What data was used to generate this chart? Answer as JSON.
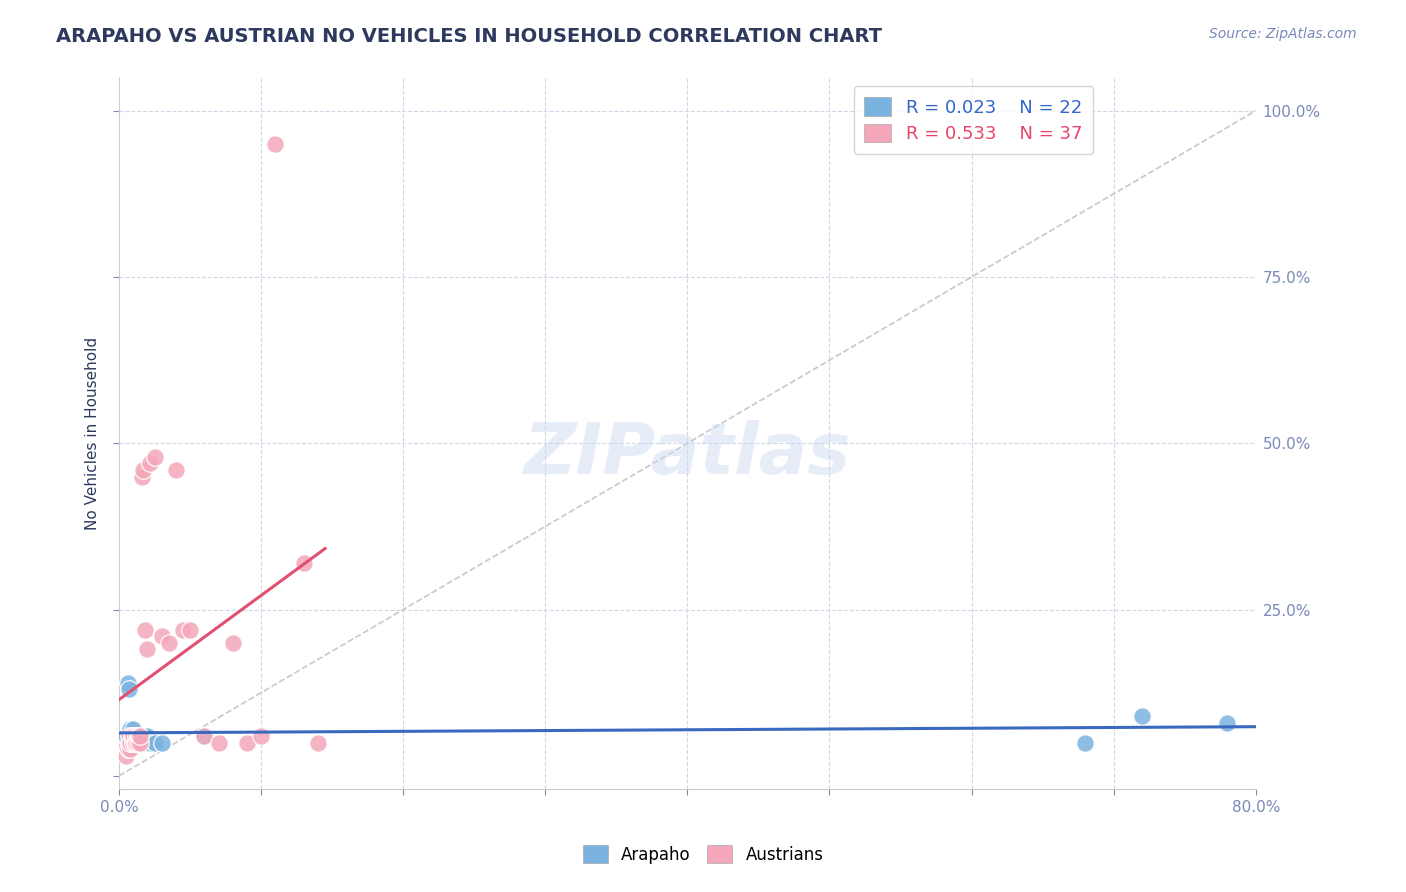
{
  "title": "ARAPAHO VS AUSTRIAN NO VEHICLES IN HOUSEHOLD CORRELATION CHART",
  "source": "Source: ZipAtlas.com",
  "ylabel": "No Vehicles in Household",
  "xlabel": "",
  "xlim": [
    0.0,
    0.8
  ],
  "ylim": [
    -0.02,
    1.05
  ],
  "xticks": [
    0.0,
    0.1,
    0.2,
    0.3,
    0.4,
    0.5,
    0.6,
    0.7,
    0.8
  ],
  "xticklabels": [
    "0.0%",
    "",
    "",
    "",
    "",
    "",
    "",
    "",
    "80.0%"
  ],
  "yticks": [
    0.0,
    0.25,
    0.5,
    0.75,
    1.0
  ],
  "yticklabels": [
    "",
    "25.0%",
    "50.0%",
    "75.0%",
    "100.0%"
  ],
  "arapaho_color": "#7ab3e0",
  "austrians_color": "#f4a7b9",
  "arapaho_R": 0.023,
  "arapaho_N": 22,
  "austrians_R": 0.533,
  "austrians_N": 37,
  "watermark": "ZIPatlas",
  "diagonal_color": "#c8c8c8",
  "arapaho_line_color": "#3a6abf",
  "austrians_line_color": "#e05070",
  "arapaho_x": [
    0.005,
    0.006,
    0.007,
    0.008,
    0.009,
    0.01,
    0.011,
    0.012,
    0.013,
    0.014,
    0.015,
    0.016,
    0.017,
    0.018,
    0.02,
    0.022,
    0.025,
    0.03,
    0.06,
    0.68,
    0.72,
    0.78
  ],
  "arapaho_y": [
    0.06,
    0.14,
    0.13,
    0.07,
    0.06,
    0.07,
    0.06,
    0.05,
    0.05,
    0.06,
    0.05,
    0.05,
    0.05,
    0.06,
    0.06,
    0.05,
    0.05,
    0.05,
    0.06,
    0.05,
    0.09,
    0.08
  ],
  "austrians_x": [
    0.004,
    0.005,
    0.006,
    0.007,
    0.007,
    0.008,
    0.008,
    0.009,
    0.01,
    0.01,
    0.011,
    0.012,
    0.012,
    0.013,
    0.013,
    0.014,
    0.015,
    0.015,
    0.016,
    0.017,
    0.018,
    0.02,
    0.022,
    0.025,
    0.03,
    0.035,
    0.04,
    0.045,
    0.05,
    0.06,
    0.07,
    0.08,
    0.09,
    0.1,
    0.11,
    0.13,
    0.14
  ],
  "austrians_y": [
    0.04,
    0.03,
    0.04,
    0.05,
    0.06,
    0.04,
    0.05,
    0.06,
    0.05,
    0.06,
    0.05,
    0.06,
    0.05,
    0.06,
    0.05,
    0.06,
    0.05,
    0.06,
    0.45,
    0.46,
    0.22,
    0.19,
    0.47,
    0.48,
    0.21,
    0.2,
    0.46,
    0.22,
    0.22,
    0.06,
    0.05,
    0.2,
    0.05,
    0.06,
    0.95,
    0.32,
    0.05
  ],
  "grid_color": "#d0d8e8",
  "background_color": "#ffffff",
  "title_color": "#2d3a5e",
  "axis_label_color": "#2d3a5e",
  "tick_color": "#7a8ab8",
  "legend_text_color_blue": "#3366cc",
  "legend_text_color_pink": "#e8446a"
}
